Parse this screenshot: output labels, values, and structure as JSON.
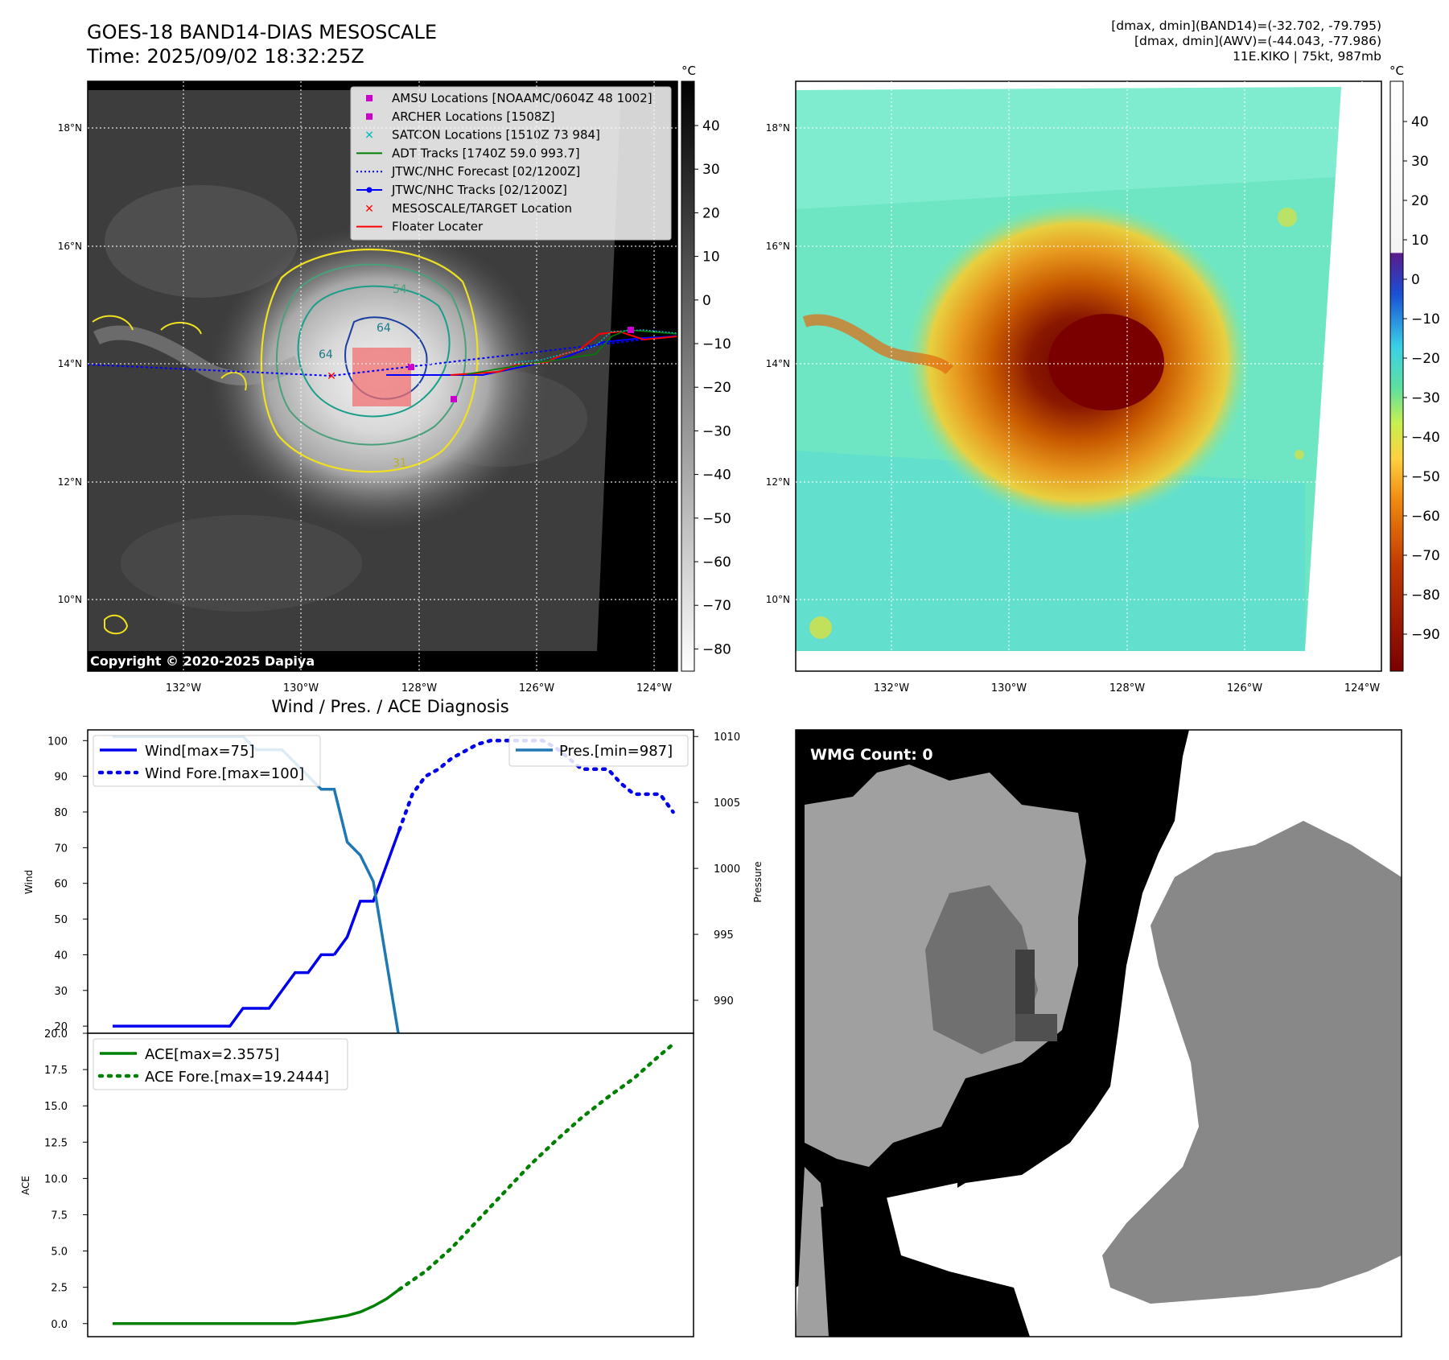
{
  "header": {
    "title_line1": "GOES-18 BAND14-DIAS MESOSCALE",
    "title_line2": "Time: 2025/09/02 18:32:25Z",
    "dmax_band14": "[dmax, dmin](BAND14)=(-32.702, -79.795)",
    "dmax_awv": "[dmax, dmin](AWV)=(-44.043, -77.986)",
    "storm_info": "11E.KIKO | 75kt, 987mb"
  },
  "colors": {
    "wind": "#0000ee",
    "pressure": "#1f77b4",
    "ace": "#008000",
    "amsu": "#cc00cc",
    "archer": "#cc00cc",
    "satcon": "#00bbbb",
    "adt": "#008000",
    "forecast": "#0000ff",
    "tracks": "#0000ff",
    "mesoscale": "#ff0000",
    "floater": "#ff0000"
  },
  "maps": {
    "x_ticks": [
      "132°W",
      "130°W",
      "128°W",
      "126°W",
      "124°W"
    ],
    "y_ticks": [
      "18°N",
      "16°N",
      "14°N",
      "12°N",
      "10°N"
    ],
    "ir_colorbar": {
      "unit": "°C",
      "ticks": [
        "40",
        "30",
        "20",
        "10",
        "0",
        "−10",
        "−20",
        "−30",
        "−40",
        "−50",
        "−60",
        "−70",
        "−80"
      ]
    },
    "awv_colorbar": {
      "unit": "°C",
      "ticks": [
        "40",
        "30",
        "20",
        "10",
        "0",
        "−10",
        "−20",
        "−30",
        "−40",
        "−50",
        "−60",
        "−70",
        "−80",
        "−90"
      ]
    },
    "copyright": "Copyright © 2020-2025 Dapiya",
    "contour_labels": [
      "64",
      "64",
      "54",
      "31"
    ],
    "legend": [
      {
        "label": "AMSU Locations [NOAAMC/0604Z 48 1002]",
        "marker": "square",
        "color": "#cc00cc"
      },
      {
        "label": "ARCHER Locations [1508Z]",
        "marker": "square",
        "color": "#cc00cc"
      },
      {
        "label": "SATCON Locations [1510Z 73 984]",
        "marker": "x",
        "color": "#00bbbb"
      },
      {
        "label": "ADT Tracks [1740Z 59.0 993.7]",
        "marker": "line",
        "color": "#008000"
      },
      {
        "label": "JTWC/NHC Forecast [02/1200Z]",
        "marker": "dotted",
        "color": "#0000ff"
      },
      {
        "label": "JTWC/NHC Tracks [02/1200Z]",
        "marker": "line-dot",
        "color": "#0000ff"
      },
      {
        "label": "MESOSCALE/TARGET Location",
        "marker": "x",
        "color": "#ff0000"
      },
      {
        "label": "Floater Locater",
        "marker": "line",
        "color": "#ff0000"
      }
    ]
  },
  "chart_data": [
    {
      "type": "line",
      "title": "Wind / Pres. / ACE Diagnosis",
      "ylabel": "Wind",
      "y2label": "Pressure",
      "ylim": [
        18,
        103
      ],
      "y2lim": [
        987.5,
        1010.5
      ],
      "yticks": [
        20,
        30,
        40,
        50,
        60,
        70,
        80,
        90,
        100
      ],
      "y2ticks": [
        990,
        995,
        1000,
        1005,
        1010
      ],
      "series": [
        {
          "name": "Wind[max=75]",
          "axis": "left",
          "style": "solid",
          "x": [
            0,
            1,
            2,
            3,
            4,
            5,
            6,
            7,
            8,
            9,
            10,
            11,
            12,
            13,
            14,
            15,
            16,
            17
          ],
          "values": [
            20,
            20,
            20,
            20,
            20,
            20,
            20,
            20,
            20,
            20,
            25,
            25,
            25,
            30,
            35,
            35,
            40,
            40
          ]
        },
        {
          "name": "Wind[max=75] (cont.)",
          "axis": "left",
          "style": "solid",
          "legend": false,
          "x": [
            17,
            18,
            19,
            20,
            21,
            22
          ],
          "values": [
            40,
            45,
            55,
            55,
            65,
            75
          ]
        },
        {
          "name": "Wind Fore.[max=100]",
          "axis": "left",
          "style": "dotted",
          "x": [
            22,
            23,
            24,
            25,
            26,
            27,
            28,
            29,
            30,
            31,
            32,
            33,
            34,
            35,
            36,
            37,
            38,
            39,
            40,
            41,
            42,
            43
          ],
          "values": [
            75,
            85,
            90,
            92,
            95,
            97,
            99,
            100,
            100,
            100,
            100,
            100,
            98,
            95,
            92,
            92,
            92,
            88,
            85,
            85,
            85,
            80
          ]
        },
        {
          "name": "Pres.[min=987]",
          "axis": "right",
          "style": "solid",
          "x": [
            0,
            1,
            2,
            3,
            4,
            5,
            6,
            7,
            8,
            9,
            10,
            11,
            12,
            13,
            14,
            15,
            16,
            17,
            18,
            19,
            20,
            21,
            22
          ],
          "values": [
            1010,
            1010,
            1010,
            1010,
            1010,
            1010,
            1010,
            1010,
            1010,
            1010,
            1010,
            1009,
            1009,
            1009,
            1008,
            1007,
            1006,
            1006,
            1002,
            1001,
            999,
            993,
            987
          ]
        }
      ]
    },
    {
      "type": "line",
      "ylabel": "ACE",
      "ylim": [
        -0.9,
        20.0
      ],
      "yticks": [
        0.0,
        2.5,
        5.0,
        7.5,
        10.0,
        12.5,
        15.0,
        17.5,
        20.0
      ],
      "series": [
        {
          "name": "ACE[max=2.3575]",
          "style": "solid",
          "x": [
            0,
            2,
            4,
            6,
            8,
            10,
            12,
            14,
            16,
            18,
            19,
            20,
            21,
            22
          ],
          "values": [
            0,
            0,
            0,
            0,
            0,
            0,
            0,
            0,
            0.25,
            0.55,
            0.8,
            1.2,
            1.7,
            2.3575
          ]
        },
        {
          "name": "ACE Fore.[max=19.2444]",
          "style": "dotted",
          "x": [
            22,
            24,
            26,
            28,
            30,
            32,
            34,
            36,
            38,
            40,
            42,
            43
          ],
          "values": [
            2.3575,
            3.6,
            5.2,
            7.1,
            9.0,
            10.9,
            12.6,
            14.2,
            15.6,
            16.9,
            18.5,
            19.2444
          ]
        }
      ]
    }
  ],
  "wmg": {
    "label": "WMG Count: 0"
  }
}
